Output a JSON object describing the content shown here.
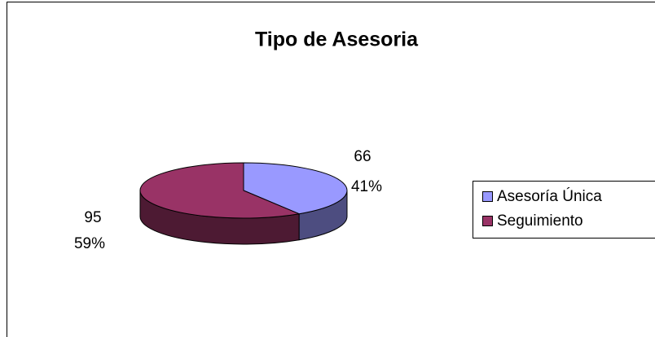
{
  "chart_data": {
    "type": "pie",
    "title": "Tipo de Asesoria",
    "categories": [
      "Asesoría Única",
      "Seguimiento"
    ],
    "values": [
      66,
      95
    ],
    "percent_labels": [
      "41%",
      "59%"
    ],
    "colors": [
      "#9999ff",
      "#993366"
    ],
    "legend": "right"
  }
}
